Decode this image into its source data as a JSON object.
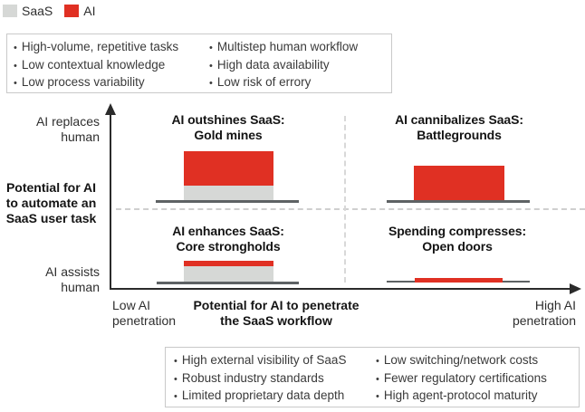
{
  "legend": {
    "items": [
      {
        "label": "SaaS",
        "color": "#d6d8d6"
      },
      {
        "label": "AI",
        "color": "#e03023"
      }
    ]
  },
  "colors": {
    "saas": "#d6d8d6",
    "ai": "#e03023",
    "platform": "#5e6264",
    "axis": "#2b2b2b"
  },
  "top_criteria_box": {
    "left": [
      "High-volume, repetitive tasks",
      "Low contextual knowledge",
      "Low process variability"
    ],
    "right": [
      "Multistep human workflow",
      "High data availability",
      "Low risk of errory"
    ]
  },
  "bottom_criteria_box": {
    "left": [
      "High external visibility of SaaS",
      "Robust industry standards",
      "Limited proprietary data depth"
    ],
    "right": [
      "Low switching/network costs",
      "Fewer regulatory certifications",
      "High agent-protocol maturity"
    ]
  },
  "y_axis": {
    "top_label_line1": "AI replaces",
    "top_label_line2": "human",
    "title_line1": "Potential for AI",
    "title_line2": "to automate an",
    "title_line3": "SaaS user task",
    "bottom_label_line1": "AI assists",
    "bottom_label_line2": "human"
  },
  "x_axis": {
    "left_label_line1": "Low AI",
    "left_label_line2": "penetration",
    "title_line1": "Potential for AI to penetrate",
    "title_line2": "the SaaS workflow",
    "right_label_line1": "High AI",
    "right_label_line2": "penetration"
  },
  "quadrants": {
    "top_left": {
      "title_line1": "AI outshines SaaS:",
      "title_line2": "Gold mines",
      "saas_bar_height": 16,
      "ai_bar_height": 38
    },
    "top_right": {
      "title_line1": "AI cannibalizes SaaS:",
      "title_line2": "Battlegrounds",
      "saas_bar_height": 0,
      "ai_bar_height": 38
    },
    "bottom_left": {
      "title_line1": "AI enhances SaaS:",
      "title_line2": "Core strongholds",
      "saas_bar_height": 17,
      "ai_bar_height": 6
    },
    "bottom_right": {
      "title_line1": "Spending compresses:",
      "title_line2": "Open doors",
      "saas_bar_height": 0,
      "ai_bar_height": 5
    }
  },
  "chart_data": {
    "type": "bar",
    "variant": "2x2 quadrant matrix with stacked bars",
    "legend": [
      "SaaS",
      "AI"
    ],
    "legend_position": "top-left",
    "xlabel": "Potential for AI to penetrate the SaaS workflow",
    "ylabel": "Potential for AI to automate an SaaS user task",
    "x_range_labels": [
      "Low AI penetration",
      "High AI penetration"
    ],
    "y_range_labels": [
      "AI assists human",
      "AI replaces human"
    ],
    "grid": "dashed quadrant divider lines",
    "units": "relative bar height in px as drawn",
    "quadrants": [
      {
        "position": "top-left",
        "title": "AI outshines SaaS: Gold mines",
        "series": {
          "SaaS": 16,
          "AI": 38
        }
      },
      {
        "position": "top-right",
        "title": "AI cannibalizes SaaS: Battlegrounds",
        "series": {
          "SaaS": 0,
          "AI": 38
        }
      },
      {
        "position": "bottom-left",
        "title": "AI enhances SaaS: Core strongholds",
        "series": {
          "SaaS": 17,
          "AI": 6
        }
      },
      {
        "position": "bottom-right",
        "title": "Spending compresses: Open doors",
        "series": {
          "SaaS": 0,
          "AI": 5
        }
      }
    ]
  }
}
